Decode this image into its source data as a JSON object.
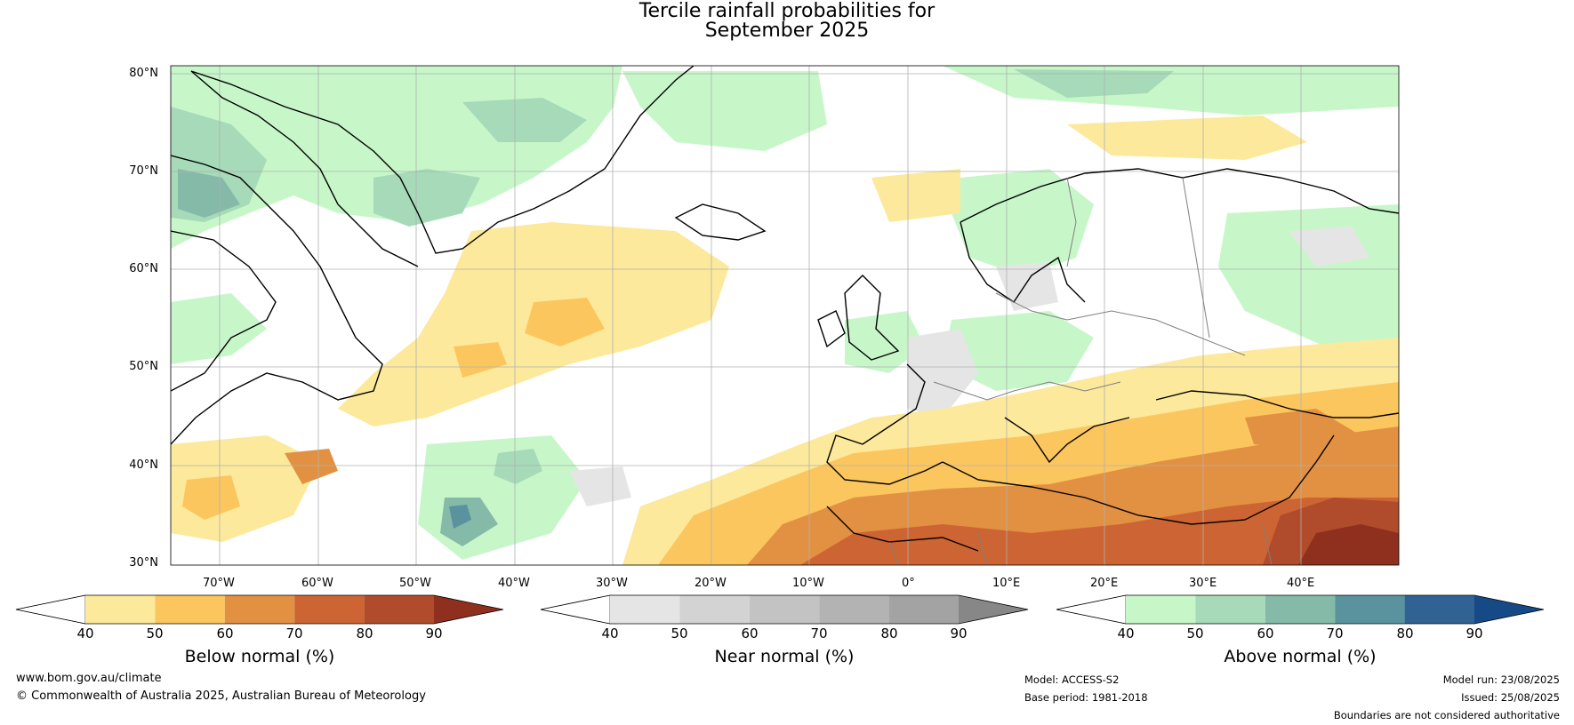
{
  "title_line1": "Tercile rainfall probabilities for",
  "title_line2": "September 2025",
  "lat_labels": [
    "80°N",
    "70°N",
    "60°N",
    "50°N",
    "40°N",
    "30°N"
  ],
  "lon_labels": [
    "70°W",
    "60°W",
    "50°W",
    "40°W",
    "30°W",
    "20°W",
    "10°W",
    "0°",
    "10°E",
    "20°E",
    "30°E",
    "40°E"
  ],
  "colorbars": [
    {
      "label": "Below normal (%)",
      "ticks": [
        "40",
        "50",
        "60",
        "70",
        "80",
        "90"
      ],
      "colors": [
        "#ffffff",
        "#fde99c",
        "#fcc65f",
        "#e29143",
        "#cd6433",
        "#b04c2b",
        "#8f2f1e"
      ]
    },
    {
      "label": "Near normal (%)",
      "ticks": [
        "40",
        "50",
        "60",
        "70",
        "80",
        "90"
      ],
      "colors": [
        "#ffffff",
        "#e5e5e5",
        "#d3d3d3",
        "#c3c3c3",
        "#b3b3b3",
        "#a3a3a3",
        "#878787"
      ]
    },
    {
      "label": "Above normal (%)",
      "ticks": [
        "40",
        "50",
        "60",
        "70",
        "80",
        "90"
      ],
      "colors": [
        "#ffffff",
        "#c7f7c9",
        "#a6dab8",
        "#85baa9",
        "#5a929e",
        "#316294",
        "#164a86"
      ]
    }
  ],
  "footer": {
    "website": "www.bom.gov.au/climate",
    "copyright": "© Commonwealth of Australia 2025, Australian Bureau of Meteorology",
    "model": "Model: ACCESS-S2",
    "base_period": "Base period: 1981-2018",
    "model_run": "Model run: 23/08/2025",
    "issued": "Issued: 25/08/2025",
    "disclaimer": "Boundaries are not considered authoritative"
  }
}
